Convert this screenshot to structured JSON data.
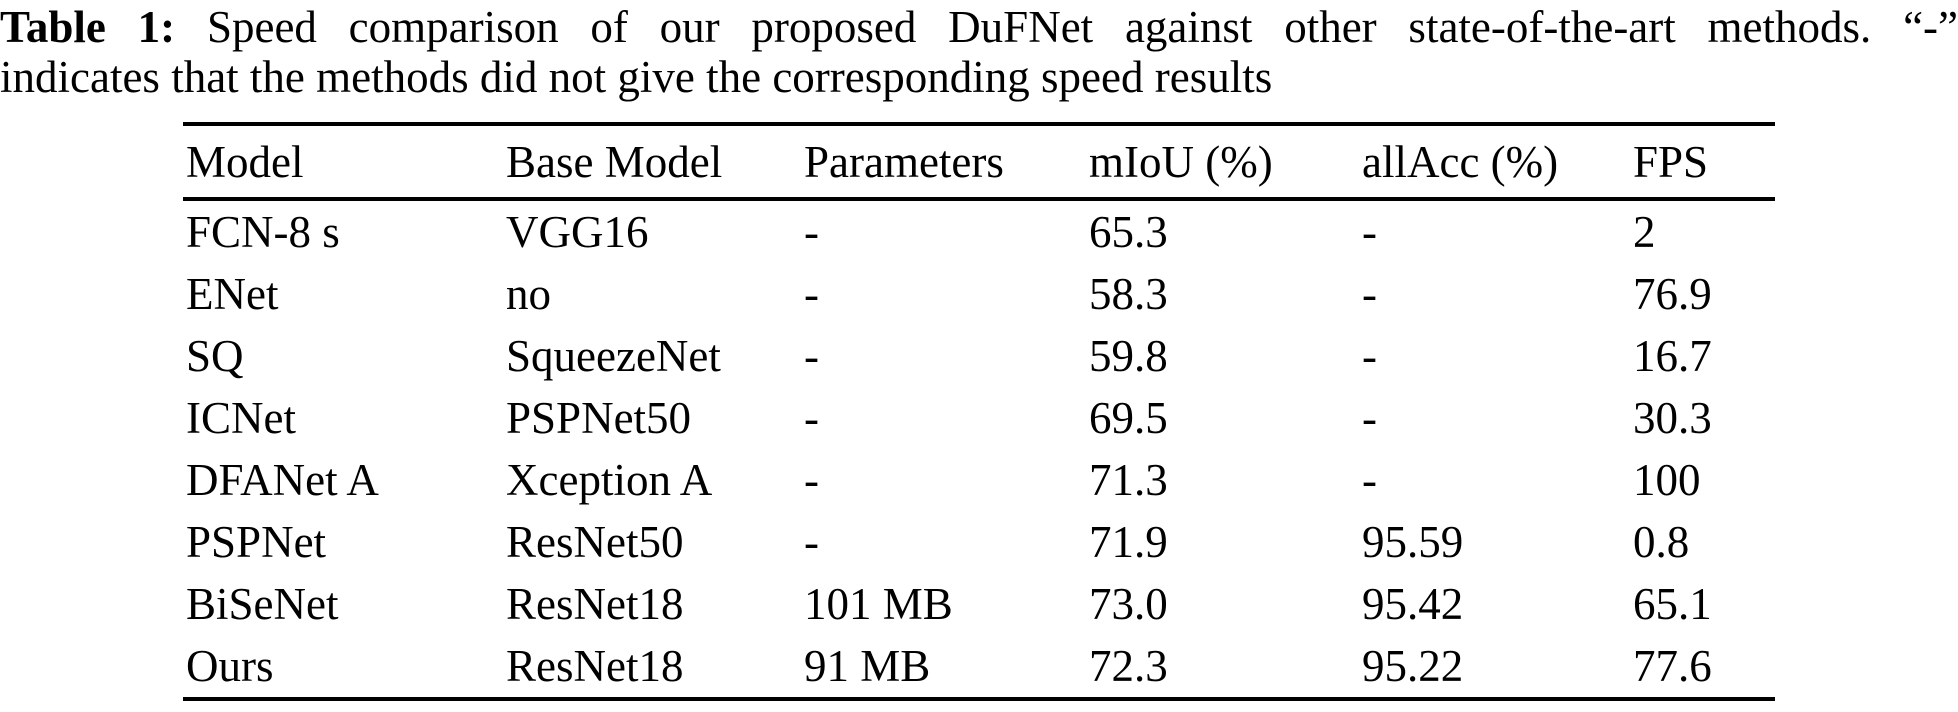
{
  "caption": {
    "label": "Table 1:",
    "line1": "Speed comparison of our proposed DuFNet against other state-of-the-art methods. “-”",
    "line2": "indicates that the methods did not give the corresponding speed results"
  },
  "table": {
    "columns": [
      "Model",
      "Base Model",
      "Parameters",
      "mIoU (%)",
      "allAcc (%)",
      "FPS"
    ],
    "rows": [
      [
        "FCN-8 s",
        "VGG16",
        "-",
        "65.3",
        "-",
        "2"
      ],
      [
        "ENet",
        "no",
        "-",
        "58.3",
        "-",
        "76.9"
      ],
      [
        "SQ",
        "SqueezeNet",
        "-",
        "59.8",
        "-",
        "16.7"
      ],
      [
        "ICNet",
        "PSPNet50",
        "-",
        "69.5",
        "-",
        "30.3"
      ],
      [
        "DFANet A",
        "Xception A",
        "-",
        "71.3",
        "-",
        "100"
      ],
      [
        "PSPNet",
        "ResNet50",
        "-",
        "71.9",
        "95.59",
        "0.8"
      ],
      [
        "BiSeNet",
        "ResNet18",
        "101 MB",
        "73.0",
        "95.42",
        "65.1"
      ],
      [
        "Ours",
        "ResNet18",
        "91 MB",
        "72.3",
        "95.22",
        "77.6"
      ]
    ]
  },
  "colors": {
    "text": "#000000",
    "background": "#ffffff",
    "rule": "#000000"
  }
}
